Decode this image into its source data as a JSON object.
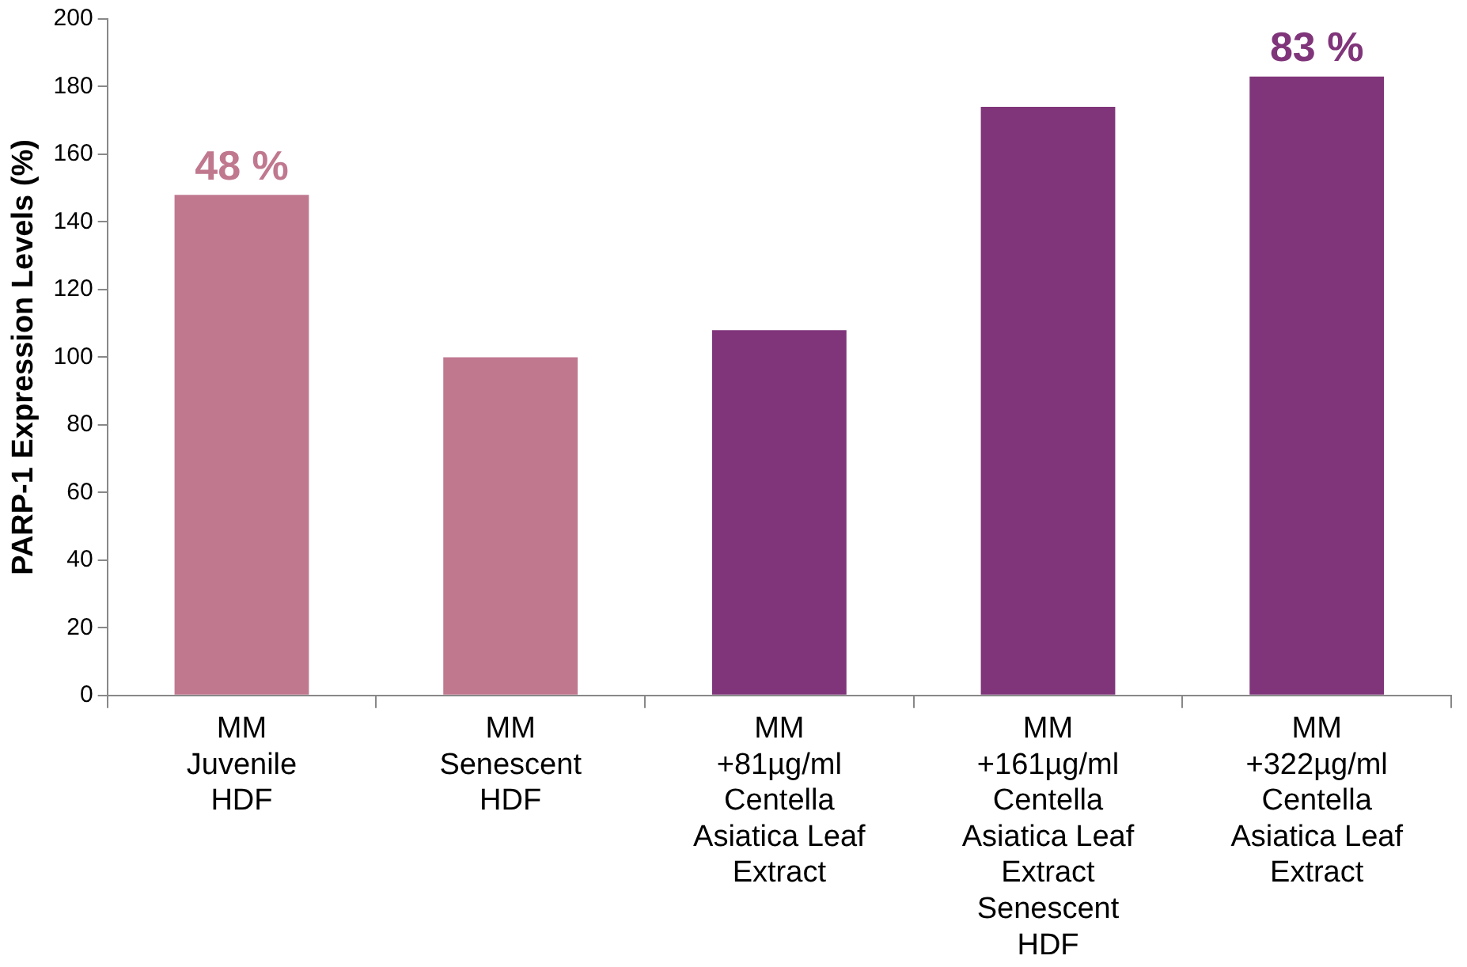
{
  "chart_data": {
    "type": "bar",
    "ylabel": "PARP-1 Expression Levels (%)",
    "categories": [
      "MM\nJuvenile\nHDF",
      "MM\nSenescent\nHDF",
      "MM\n+81µg/ml\nCentella\nAsiatica Leaf\nExtract",
      "MM\n+161µg/ml\nCentella\nAsiatica Leaf\nExtract\nSenescent\nHDF",
      "MM\n+322µg/ml\nCentella\nAsiatica Leaf\nExtract"
    ],
    "values": [
      148,
      100,
      108,
      174,
      183
    ],
    "colors": [
      "#c0788f",
      "#c0788f",
      "#80357a",
      "#80357a",
      "#80357a"
    ],
    "annotations": [
      {
        "text": "48 %",
        "x": "MM\nJuvenile\nHDF",
        "y": 148
      },
      {
        "text": "83 %",
        "x": "MM\n+322µg/ml\nCentella\nAsiatica Leaf\nExtract",
        "y": 183
      }
    ],
    "ylim": [
      0,
      200
    ],
    "yticks": [
      0,
      20,
      40,
      60,
      80,
      100,
      120,
      140,
      160,
      180,
      200
    ],
    "grid": false,
    "legend": false
  }
}
